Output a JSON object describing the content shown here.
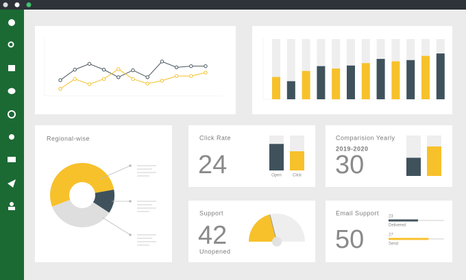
{
  "panels": {
    "line_chart": {
      "type": "line",
      "ylim": [
        0,
        100
      ],
      "series": [
        {
          "color": "#46555e",
          "values": [
            27,
            45,
            55,
            45,
            32,
            44,
            32,
            59,
            49,
            51,
            51
          ]
        },
        {
          "color": "#f5c02a",
          "values": [
            12,
            29,
            20,
            29,
            46,
            29,
            21,
            26,
            34,
            34,
            40
          ]
        }
      ]
    },
    "bar_chart": {
      "type": "bar",
      "ylim": [
        0,
        100
      ],
      "values": [
        37,
        30,
        47,
        55,
        51,
        56,
        60,
        67,
        63,
        65,
        72,
        76
      ],
      "colors": [
        "#f7c12b",
        "#3f525c",
        "#f7c12b",
        "#3f525c",
        "#f7c12b",
        "#3f525c",
        "#f7c12b",
        "#3f525c",
        "#f7c12b",
        "#3f525c",
        "#f7c12b",
        "#3f525c"
      ]
    },
    "regional": {
      "title": "Regional-wise",
      "type": "pie",
      "values": [
        12,
        35,
        53
      ],
      "colors": [
        "#3f525c",
        "#dedede",
        "#f7c12b"
      ]
    },
    "click_rate": {
      "title": "Click Rate",
      "number": 24,
      "ylim": [
        0,
        100
      ],
      "bars": [
        {
          "label": "Open",
          "value": 76,
          "color": "#3f525c"
        },
        {
          "label": "Click",
          "value": 55,
          "color": "#f7c12b"
        }
      ]
    },
    "comparison": {
      "title": "Comparision Yearly",
      "subtitle": "2019-2020",
      "number": 30,
      "ylim": [
        0,
        100
      ],
      "bars": [
        {
          "value": 45,
          "color": "#3f525c"
        },
        {
          "value": 73,
          "color": "#f7c12b"
        }
      ]
    },
    "support": {
      "title": "Support",
      "number": 42,
      "label": "Unopened",
      "gauge_range": [
        0,
        100
      ],
      "color": "#f7c12b"
    },
    "email": {
      "title": "Email Support",
      "number": 50,
      "xlim": [
        0,
        100
      ],
      "bars": [
        {
          "count": 23,
          "label": "Delivered",
          "value": 53,
          "color": "#3f525c"
        },
        {
          "count": 27,
          "label": "Send",
          "value": 72,
          "color": "#f7c12b"
        }
      ]
    }
  }
}
